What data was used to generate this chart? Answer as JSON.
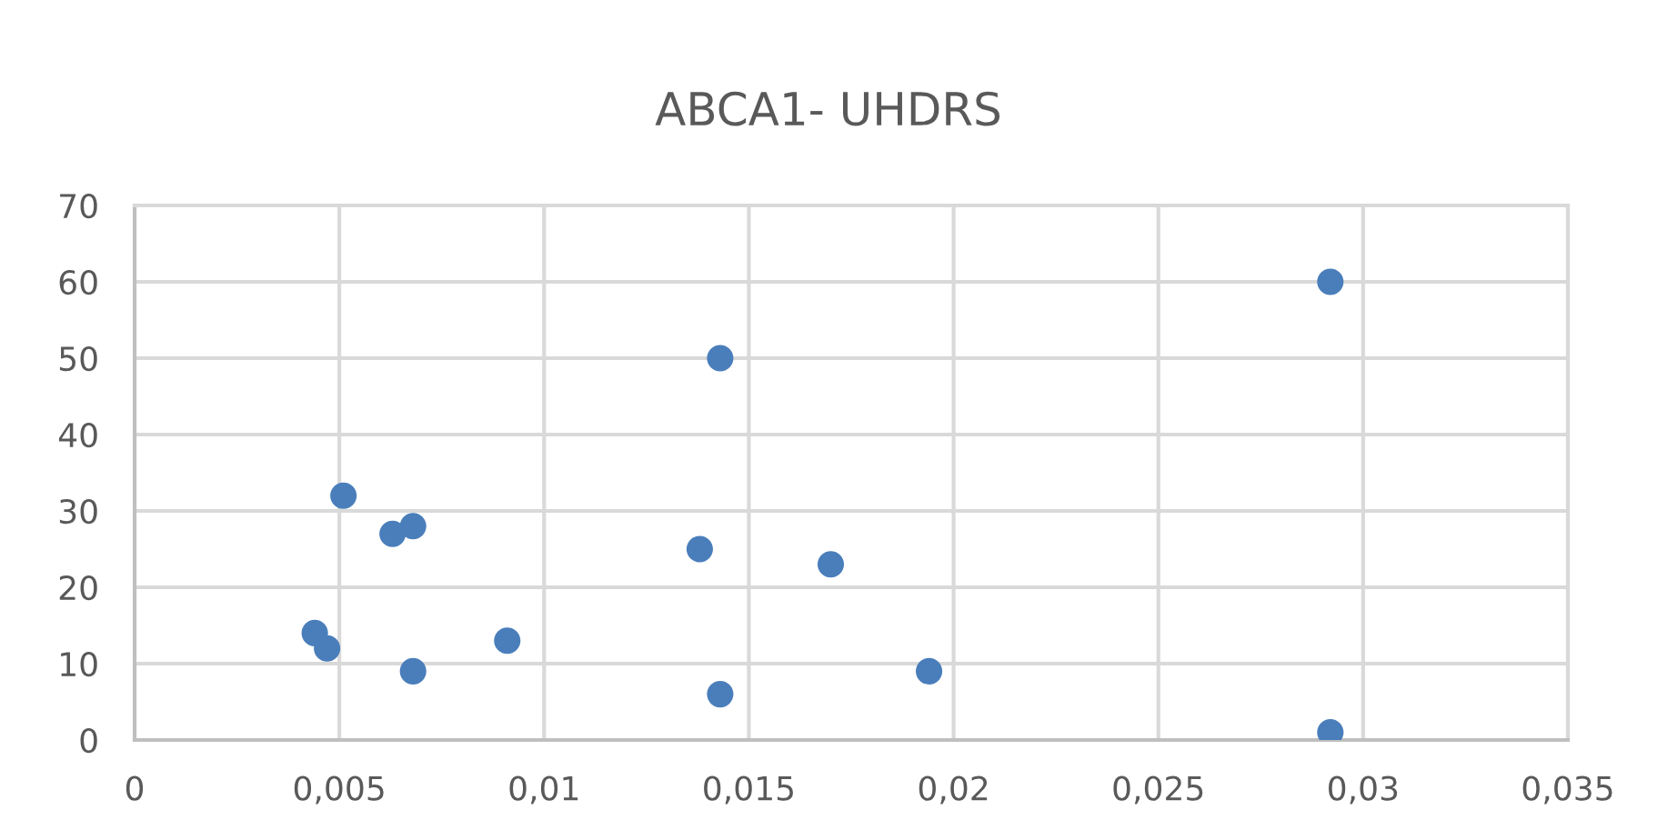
{
  "chart_data": {
    "type": "scatter",
    "title": "ABCA1- UHDRS",
    "x": [
      0.0044,
      0.0047,
      0.0051,
      0.0063,
      0.0068,
      0.0068,
      0.0091,
      0.0138,
      0.0143,
      0.0143,
      0.017,
      0.0194,
      0.0292,
      0.0292
    ],
    "series": [
      {
        "color": "#4a7ebb",
        "values": [
          14,
          12,
          32,
          27,
          28,
          9,
          13,
          25,
          50,
          6,
          23,
          9,
          60,
          1
        ]
      }
    ],
    "xlim": [
      0,
      0.035
    ],
    "ylim": [
      0,
      70
    ],
    "xticks": [
      0,
      {
        "value": 0.005,
        "label": "0,005"
      },
      {
        "value": 0.01,
        "label": "0,01"
      },
      {
        "value": 0.015,
        "label": "0,015"
      },
      {
        "value": 0.02,
        "label": "0,02"
      },
      {
        "value": 0.025,
        "label": "0,025"
      },
      {
        "value": 0.03,
        "label": "0,03"
      },
      {
        "value": 0.035,
        "label": "0,035"
      }
    ],
    "yticks": [
      0,
      10,
      20,
      30,
      40,
      50,
      60,
      70
    ],
    "grid": true,
    "marker": "circle"
  }
}
